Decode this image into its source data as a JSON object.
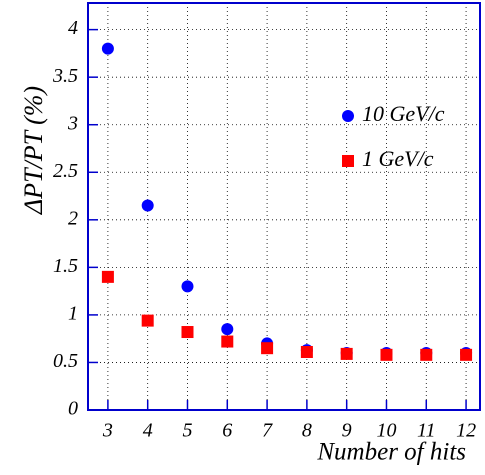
{
  "chart_data": {
    "type": "scatter",
    "x_label": "Number of hits",
    "y_label": "ΔPT/PT (%)",
    "x": [
      3,
      4,
      5,
      6,
      7,
      8,
      9,
      10,
      11,
      12
    ],
    "series": [
      {
        "name": "10 GeV/c",
        "color": "#0000ff",
        "marker": "circle",
        "values": [
          3.8,
          2.15,
          1.3,
          0.85,
          0.7,
          0.63,
          0.6,
          0.6,
          0.6,
          0.6
        ]
      },
      {
        "name": "1 GeV/c",
        "color": "#ff0000",
        "marker": "square",
        "values": [
          1.4,
          0.94,
          0.82,
          0.72,
          0.65,
          0.61,
          0.59,
          0.58,
          0.58,
          0.58
        ]
      }
    ],
    "xlim": [
      2.5,
      12.35
    ],
    "ylim": [
      0,
      4.28
    ],
    "xticks": [
      3,
      4,
      5,
      6,
      7,
      8,
      9,
      10,
      11,
      12
    ],
    "yticks": [
      0,
      0.5,
      1,
      1.5,
      2,
      2.5,
      3,
      3.5,
      4
    ],
    "grid": true,
    "legend": "right"
  }
}
